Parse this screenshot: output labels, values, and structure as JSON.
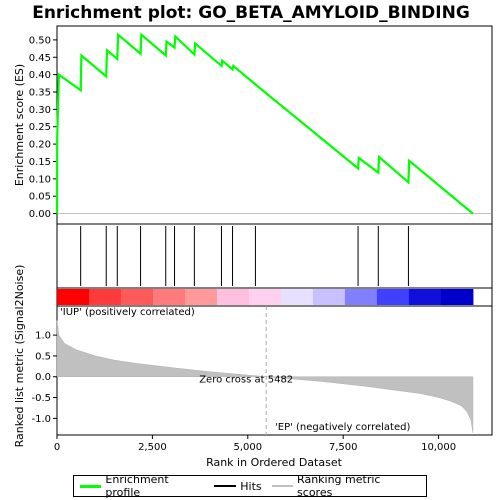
{
  "chart_data": {
    "type": "line",
    "title": "Enrichment plot: GO_BETA_AMYLOID_BINDING",
    "top_panel": {
      "ylabel": "Enrichment score (ES)",
      "ylim": [
        -0.03,
        0.54
      ],
      "yticks": [
        0.0,
        0.05,
        0.1,
        0.15,
        0.2,
        0.25,
        0.3,
        0.35,
        0.4,
        0.45,
        0.5
      ],
      "ytick_labels": [
        "0.00",
        "0.05",
        "0.10",
        "0.15",
        "0.20",
        "0.25",
        "0.30",
        "0.35",
        "0.40",
        "0.45",
        "0.50"
      ],
      "series": [
        {
          "name": "Enrichment profile",
          "color": "#00ff00",
          "x": [
            0,
            5,
            50,
            620,
            640,
            1290,
            1310,
            1580,
            1600,
            2190,
            2210,
            2850,
            2870,
            3080,
            3100,
            3600,
            3620,
            4310,
            4330,
            4600,
            4620,
            5200,
            5220,
            7890,
            7910,
            8420,
            8440,
            9210,
            9230,
            10900
          ],
          "y": [
            0.0,
            0.22,
            0.4,
            0.355,
            0.455,
            0.395,
            0.47,
            0.445,
            0.515,
            0.46,
            0.515,
            0.455,
            0.495,
            0.478,
            0.51,
            0.458,
            0.49,
            0.425,
            0.44,
            0.415,
            0.425,
            0.372,
            0.37,
            0.13,
            0.16,
            0.118,
            0.163,
            0.09,
            0.152,
            0.0
          ]
        }
      ]
    },
    "hits": {
      "name": "Hits",
      "color": "#000000",
      "x": [
        620,
        1290,
        1580,
        2190,
        2850,
        3080,
        3600,
        4310,
        4600,
        5200,
        7890,
        8420,
        9210
      ]
    },
    "bottom_panel": {
      "ylabel": "Ranked list metric (Signal2Noise)",
      "xlabel": "Rank in Ordered Dataset",
      "ylim": [
        -1.4,
        1.7
      ],
      "yticks": [
        1.0,
        0.5,
        0.0,
        -0.5,
        -1.0
      ],
      "ytick_labels": [
        "1.0",
        "0.5",
        "0.0",
        "-0.5",
        "-1.0"
      ],
      "series": [
        {
          "name": "Ranking metric scores",
          "color": "#c0c0c0",
          "x": [
            0,
            50,
            200,
            500,
            1000,
            1500,
            2000,
            3000,
            4000,
            5000,
            5482,
            6000,
            7000,
            8000,
            9000,
            9500,
            10000,
            10300,
            10600,
            10750,
            10850,
            10900
          ],
          "y": [
            1.35,
            1.0,
            0.8,
            0.65,
            0.5,
            0.4,
            0.33,
            0.22,
            0.12,
            0.04,
            0.0,
            -0.04,
            -0.12,
            -0.22,
            -0.34,
            -0.4,
            -0.5,
            -0.58,
            -0.7,
            -0.85,
            -1.05,
            -1.35
          ]
        }
      ],
      "zero_cross_label": "Zero cross at 5482",
      "zero_cross": 5482,
      "pos_label": "'IUP' (positively correlated)",
      "neg_label": "'EP' (negatively correlated)",
      "pos_color": "#d00000",
      "neg_color": "#0000cc"
    },
    "x_axis": {
      "xlim": [
        0,
        11400
      ],
      "xticks": [
        0,
        2500,
        5000,
        7500,
        10000
      ],
      "xtick_labels": [
        "0",
        "2,500",
        "5,000",
        "7,500",
        "10,000"
      ]
    },
    "heatmap_bar": {
      "colors": [
        "#ff0000",
        "#ff3a3a",
        "#ff5a5a",
        "#ff7a7a",
        "#ff9a9a",
        "#ffc0e0",
        "#ffd0f0",
        "#e8e0ff",
        "#c8c0ff",
        "#8080ff",
        "#4040ff",
        "#1010dd",
        "#0000cc"
      ],
      "extent": [
        0,
        10900
      ]
    },
    "legend": [
      {
        "label": "Enrichment profile",
        "color": "#00ff00"
      },
      {
        "label": "Hits",
        "color": "#000000"
      },
      {
        "label": "Ranking metric scores",
        "color": "#c0c0c0"
      }
    ]
  }
}
